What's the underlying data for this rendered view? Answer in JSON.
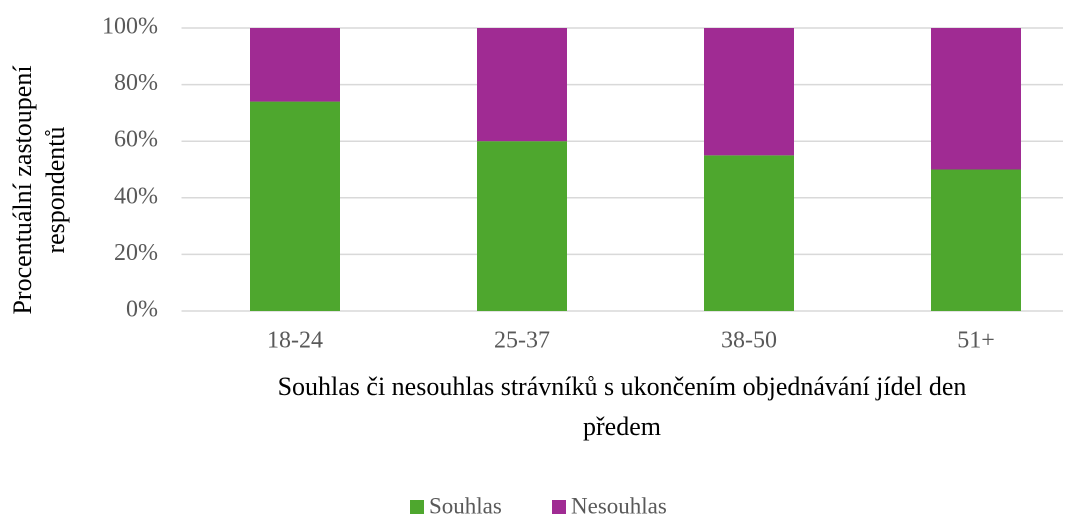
{
  "chart_data": {
    "type": "stacked_bar",
    "xlabel": [
      "Souhlas či nesouhlas strávníků s ukončením objednávání jídel den",
      "předem"
    ],
    "ylabel": [
      "Procentuální zastoupení",
      "respondentů"
    ],
    "categories": [
      "18-24",
      "25-37",
      "38-50",
      "51+"
    ],
    "series": [
      {
        "name": "Souhlas",
        "color": "#4ea72e",
        "values": [
          74,
          60,
          55,
          50
        ]
      },
      {
        "name": "Nesouhlas",
        "color": "#a02b93",
        "values": [
          26,
          40,
          45,
          50
        ]
      }
    ],
    "ylim": [
      0,
      100
    ],
    "yticks": [
      {
        "value": 0,
        "label": "0%"
      },
      {
        "value": 20,
        "label": "20%"
      },
      {
        "value": 40,
        "label": "40%"
      },
      {
        "value": 60,
        "label": "60%"
      },
      {
        "value": 80,
        "label": "80%"
      },
      {
        "value": 100,
        "label": "100%"
      }
    ],
    "grid": true,
    "legend": "bottom"
  }
}
